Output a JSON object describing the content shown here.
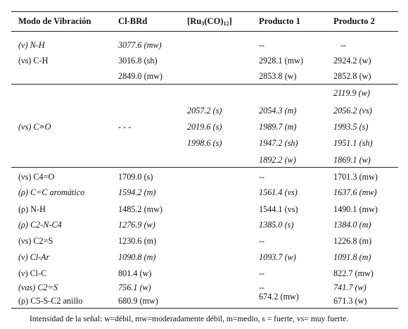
{
  "table": {
    "headers": [
      "Modo de Vibración",
      "Cl-BRd",
      "[Ru3(CO)12]",
      "Producto 1",
      "Producto 2"
    ],
    "header_ru_parts": {
      "open": "[Ru",
      "sub1": "3",
      "mid": "(CO)",
      "sub2": "12",
      "close": "]"
    },
    "rows": [
      [
        "(ν) N-H",
        "3077.6 (mw)",
        "",
        "--",
        "--"
      ],
      [
        "(νs) C-H",
        "3016.8 (sh)",
        "",
        "2928.1 (mw)",
        "2924.2 (w)"
      ],
      [
        "",
        "2849.0 (mw)",
        "",
        "2853.8 (w)",
        "2852.8 (w)"
      ],
      [
        "",
        "",
        "",
        "",
        "2119.9 (w)"
      ],
      [
        "",
        "",
        "2057.2 (s)",
        "2054.3 (m)",
        "2056.2 (vs)"
      ],
      [
        "(νs) C≡O",
        "- - -",
        "2019.6 (s)",
        "1989.7 (m)",
        "1993.5 (s)"
      ],
      [
        "",
        "",
        "1998.6 (s)",
        "1947.2 (sh)",
        "1951.1 (sh)"
      ],
      [
        "",
        "",
        "",
        "1892.2 (w)",
        "1869.1 (w)"
      ],
      [
        "(νs) C4=O",
        "1709.0 (s)",
        "",
        "--",
        "1701.3 (mw)"
      ],
      [
        "(ρ) C=C aromático",
        "1594.2 (m)",
        "",
        "1561.4 (vs)",
        "1637.6 (mw)"
      ],
      [
        "(ρ) N-H",
        "1485.2 (mw)",
        "",
        "1544.1 (vs)",
        "1490.1 (mw)"
      ],
      [
        "(ρ) C2-N-C4",
        "1276.9 (w)",
        "",
        "1385.0 (s)",
        "1384.0 (m)"
      ],
      [
        "(νs) C2=S",
        "1230.6 (m)",
        "",
        "--",
        "1226.8 (m)"
      ],
      [
        "(ν) Cl-Ar",
        "1090.8 (m)",
        "",
        "1093.7 (w)",
        "1091.8 (m)"
      ],
      [
        "(ν) Cl-C",
        "801.4 (w)",
        "",
        "--",
        "822.7 (mw)"
      ],
      [
        "(νas) C2=S",
        "756.1 (w)",
        "",
        "--",
        "741.7 (w)"
      ],
      [
        "(ρ) C5-S-C2 anillo",
        "680.9 (mw)",
        "",
        "674.2 (mw)",
        "671.3 (w)"
      ]
    ]
  },
  "footnote": "Intensidad de la señal: w=débil, mw=moderadamente débil, m=medio, s = fuerte, vs= muy fuerte."
}
